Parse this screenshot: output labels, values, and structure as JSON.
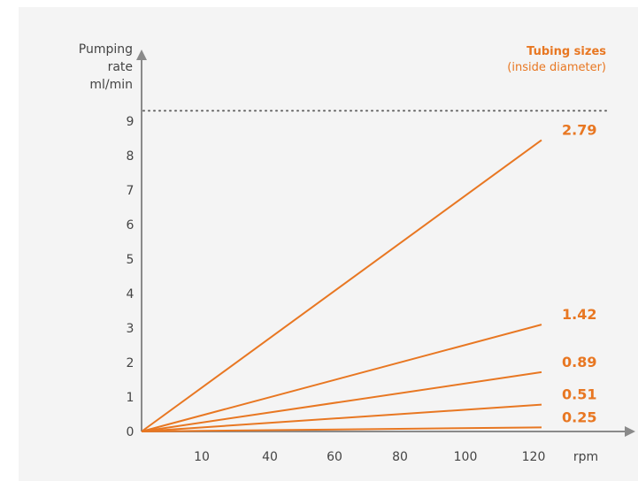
{
  "chart_data": {
    "type": "line",
    "ylabel": [
      "Pumping",
      "rate",
      "ml/min"
    ],
    "xlabel": "rpm",
    "legend_title": "Tubing sizes",
    "legend_subtitle": "(inside diameter)",
    "x_ticks": [
      "10",
      "40",
      "60",
      "80",
      "100",
      "120"
    ],
    "y_ticks": [
      "0",
      "1",
      "2",
      "3",
      "4",
      "5",
      "6",
      "7",
      "8",
      "9"
    ],
    "ylim": [
      0,
      9.4
    ],
    "max_reference_line": 9.3,
    "grid": false,
    "series": [
      {
        "name": "2.79",
        "x": [
          0,
          120
        ],
        "y": [
          0,
          8.45
        ]
      },
      {
        "name": "1.42",
        "x": [
          0,
          120
        ],
        "y": [
          0,
          3.1
        ]
      },
      {
        "name": "0.89",
        "x": [
          0,
          120
        ],
        "y": [
          0,
          1.72
        ]
      },
      {
        "name": "0.51",
        "x": [
          0,
          120
        ],
        "y": [
          0,
          0.78
        ]
      },
      {
        "name": "0.25",
        "x": [
          0,
          120
        ],
        "y": [
          0,
          0.12
        ]
      }
    ]
  },
  "colors": {
    "series": "#e87722",
    "axis": "#8a8a8a",
    "text": "#444444",
    "panel": "#f4f4f4"
  }
}
